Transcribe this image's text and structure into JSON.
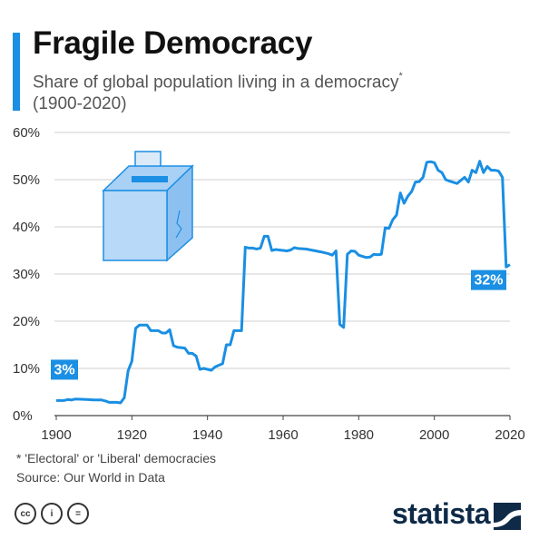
{
  "header": {
    "title": "Fragile Democracy",
    "subtitle": "Share of global population living in a democracy",
    "subtitle_mark": "*",
    "subtitle_range": "(1900-2020)"
  },
  "footer": {
    "footnote": "* 'Electoral' or 'Liberal' democracies",
    "source": "Source: Our World in Data",
    "license_icons": [
      "cc-icon",
      "by-icon",
      "nd-icon"
    ],
    "license_labels": [
      "cc",
      "i",
      "="
    ],
    "brand": "statista"
  },
  "colors": {
    "accent": "#1a8fe3",
    "line": "#1a8fe3",
    "label_bg": "#1a8fe3",
    "brand_dark": "#0e2a47",
    "grid": "#cfcfcf"
  },
  "illustration": "ballot-box-icon",
  "chart_data": {
    "type": "line",
    "title": "Fragile Democracy",
    "xlabel": "",
    "ylabel": "",
    "xlim": [
      1900,
      2020
    ],
    "ylim": [
      0,
      60
    ],
    "x_ticks": [
      1900,
      1920,
      1940,
      1960,
      1980,
      2000,
      2020
    ],
    "y_ticks": [
      0,
      10,
      20,
      30,
      40,
      50,
      60
    ],
    "y_tick_labels": [
      "0%",
      "10%",
      "20%",
      "30%",
      "40%",
      "50%",
      "60%"
    ],
    "grid": true,
    "series": [
      {
        "x": [
          1900,
          1902,
          1903,
          1904,
          1905,
          1908,
          1910,
          1912,
          1913,
          1914,
          1916,
          1917,
          1918,
          1919,
          1920,
          1921,
          1922,
          1924,
          1925,
          1927,
          1928,
          1929,
          1930,
          1931,
          1932,
          1934,
          1935,
          1936,
          1937,
          1938,
          1939,
          1940,
          1941,
          1942,
          1944,
          1945,
          1946,
          1947,
          1948,
          1949,
          1950,
          1951,
          1952,
          1953,
          1954,
          1955,
          1956,
          1957,
          1958,
          1960,
          1961,
          1962,
          1963,
          1964,
          1966,
          1968,
          1970,
          1971,
          1972,
          1973,
          1974,
          1975,
          1975.5,
          1976,
          1977,
          1978,
          1979,
          1980,
          1982,
          1983,
          1984,
          1985,
          1986,
          1987,
          1988,
          1989,
          1990,
          1991,
          1992,
          1993,
          1994,
          1995,
          1996,
          1997,
          1998,
          1999,
          2000,
          2001,
          2002,
          2003,
          2004,
          2006,
          2008,
          2009,
          2010,
          2011,
          2012,
          2013,
          2014,
          2015,
          2016,
          2017,
          2018,
          2019,
          2020
        ],
        "y": [
          3.2,
          3.2,
          3.4,
          3.3,
          3.5,
          3.4,
          3.3,
          3.3,
          3.1,
          2.8,
          2.8,
          2.7,
          3.8,
          9.5,
          11.5,
          18.5,
          19.2,
          19.2,
          18.0,
          18.0,
          17.5,
          17.5,
          18.2,
          14.8,
          14.5,
          14.3,
          13.2,
          13.2,
          12.6,
          9.8,
          10.0,
          9.8,
          9.6,
          10.3,
          11.0,
          15.0,
          15.0,
          18.0,
          18.0,
          18.0,
          35.7,
          35.5,
          35.5,
          35.3,
          35.5,
          38.0,
          38.0,
          35.0,
          35.2,
          35.0,
          34.9,
          35.1,
          35.6,
          35.4,
          35.3,
          35.0,
          34.7,
          34.5,
          34.3,
          34.0,
          34.9,
          19.3,
          19.0,
          18.7,
          34.2,
          34.9,
          34.8,
          34.0,
          33.5,
          33.6,
          34.2,
          34.1,
          34.2,
          39.8,
          39.7,
          41.5,
          42.5,
          47.2,
          45.0,
          46.5,
          47.5,
          49.5,
          49.6,
          50.5,
          53.7,
          53.8,
          53.6,
          52.0,
          51.5,
          50.0,
          49.7,
          49.2,
          50.5,
          49.5,
          52.0,
          51.5,
          53.9,
          51.5,
          52.8,
          52.0,
          52.0,
          51.8,
          50.5,
          31.5,
          32.0
        ]
      }
    ],
    "annotations": [
      {
        "x": 1900,
        "y": 3,
        "text": "3%"
      },
      {
        "x": 2020,
        "y": 32,
        "text": "32%"
      }
    ]
  }
}
